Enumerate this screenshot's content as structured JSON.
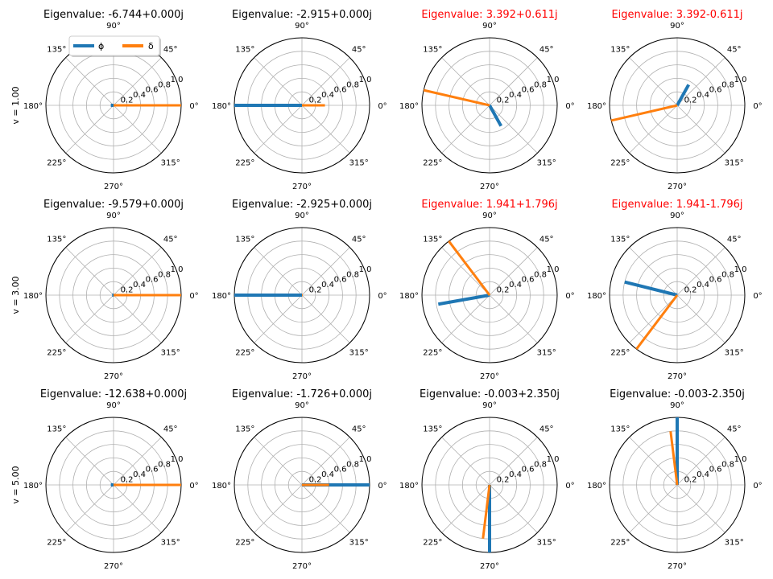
{
  "figure": {
    "rows": [
      "v = 1.00",
      "v = 3.00",
      "v = 5.00"
    ],
    "angle_tick_labels": [
      "0°",
      "45°",
      "90°",
      "135°",
      "180°",
      "225°",
      "270°",
      "315°"
    ],
    "radial_tick_labels": [
      "0.2",
      "0.4",
      "0.6",
      "0.8",
      "1.0"
    ],
    "colors": {
      "phi": "#1f77b4",
      "delta": "#ff7f0e",
      "unstable_title": "#ff0000",
      "grid": "#b0b0b0"
    },
    "legend": {
      "placement": "upper-left of first subplot",
      "entries": [
        "ϕ",
        "δ"
      ]
    }
  },
  "chart_data": [
    {
      "type": "polar",
      "row": 0,
      "col": 0,
      "title": "Eigenvalue: -6.744+0.000j",
      "unstable": false,
      "rlim": [
        0,
        1.0
      ],
      "series": [
        {
          "name": "ϕ",
          "angle_deg": 180,
          "magnitude": 0.04
        },
        {
          "name": "δ",
          "angle_deg": 0,
          "magnitude": 1.0
        }
      ]
    },
    {
      "type": "polar",
      "row": 0,
      "col": 1,
      "title": "Eigenvalue: -2.915+0.000j",
      "unstable": false,
      "rlim": [
        0,
        1.0
      ],
      "series": [
        {
          "name": "ϕ",
          "angle_deg": 180,
          "magnitude": 1.0
        },
        {
          "name": "δ",
          "angle_deg": 0,
          "magnitude": 0.34
        }
      ]
    },
    {
      "type": "polar",
      "row": 0,
      "col": 2,
      "title": "Eigenvalue: 3.392+0.611j",
      "unstable": true,
      "rlim": [
        0,
        1.0
      ],
      "series": [
        {
          "name": "ϕ",
          "angle_deg": 299,
          "magnitude": 0.35
        },
        {
          "name": "δ",
          "angle_deg": 167,
          "magnitude": 1.0
        }
      ]
    },
    {
      "type": "polar",
      "row": 0,
      "col": 3,
      "title": "Eigenvalue: 3.392-0.611j",
      "unstable": true,
      "rlim": [
        0,
        1.0
      ],
      "series": [
        {
          "name": "ϕ",
          "angle_deg": 61,
          "magnitude": 0.35
        },
        {
          "name": "δ",
          "angle_deg": 193,
          "magnitude": 1.0
        }
      ]
    },
    {
      "type": "polar",
      "row": 1,
      "col": 0,
      "title": "Eigenvalue: -9.579+0.000j",
      "unstable": false,
      "rlim": [
        0,
        1.0
      ],
      "series": [
        {
          "name": "ϕ",
          "angle_deg": 180,
          "magnitude": 0.02
        },
        {
          "name": "δ",
          "angle_deg": 0,
          "magnitude": 1.0
        }
      ]
    },
    {
      "type": "polar",
      "row": 1,
      "col": 1,
      "title": "Eigenvalue: -2.925+0.000j",
      "unstable": false,
      "rlim": [
        0,
        1.0
      ],
      "series": [
        {
          "name": "ϕ",
          "angle_deg": 180,
          "magnitude": 1.0
        },
        {
          "name": "δ",
          "angle_deg": 0,
          "magnitude": 0.01
        }
      ]
    },
    {
      "type": "polar",
      "row": 1,
      "col": 2,
      "title": "Eigenvalue: 1.941+1.796j",
      "unstable": true,
      "rlim": [
        0,
        1.0
      ],
      "series": [
        {
          "name": "ϕ",
          "angle_deg": 190,
          "magnitude": 0.77
        },
        {
          "name": "δ",
          "angle_deg": 127,
          "magnitude": 1.0
        }
      ]
    },
    {
      "type": "polar",
      "row": 1,
      "col": 3,
      "title": "Eigenvalue: 1.941-1.796j",
      "unstable": true,
      "rlim": [
        0,
        1.0
      ],
      "series": [
        {
          "name": "ϕ",
          "angle_deg": 166,
          "magnitude": 0.8
        },
        {
          "name": "δ",
          "angle_deg": 233,
          "magnitude": 1.0
        }
      ]
    },
    {
      "type": "polar",
      "row": 2,
      "col": 0,
      "title": "Eigenvalue: -12.638+0.000j",
      "unstable": false,
      "rlim": [
        0,
        1.0
      ],
      "series": [
        {
          "name": "ϕ",
          "angle_deg": 180,
          "magnitude": 0.04
        },
        {
          "name": "δ",
          "angle_deg": 0,
          "magnitude": 1.0
        }
      ]
    },
    {
      "type": "polar",
      "row": 2,
      "col": 1,
      "title": "Eigenvalue: -1.726+0.000j",
      "unstable": false,
      "rlim": [
        0,
        1.0
      ],
      "series": [
        {
          "name": "ϕ",
          "angle_deg": 0,
          "magnitude": 1.0
        },
        {
          "name": "δ",
          "angle_deg": 0,
          "magnitude": 0.4
        }
      ]
    },
    {
      "type": "polar",
      "row": 2,
      "col": 2,
      "title": "Eigenvalue: -0.003+2.350j",
      "unstable": false,
      "rlim": [
        0,
        1.0
      ],
      "series": [
        {
          "name": "ϕ",
          "angle_deg": 270,
          "magnitude": 1.0
        },
        {
          "name": "δ",
          "angle_deg": 263,
          "magnitude": 0.8
        }
      ]
    },
    {
      "type": "polar",
      "row": 2,
      "col": 3,
      "title": "Eigenvalue: -0.003-2.350j",
      "unstable": false,
      "rlim": [
        0,
        1.0
      ],
      "series": [
        {
          "name": "ϕ",
          "angle_deg": 90,
          "magnitude": 1.0
        },
        {
          "name": "δ",
          "angle_deg": 97,
          "magnitude": 0.8
        }
      ]
    }
  ]
}
